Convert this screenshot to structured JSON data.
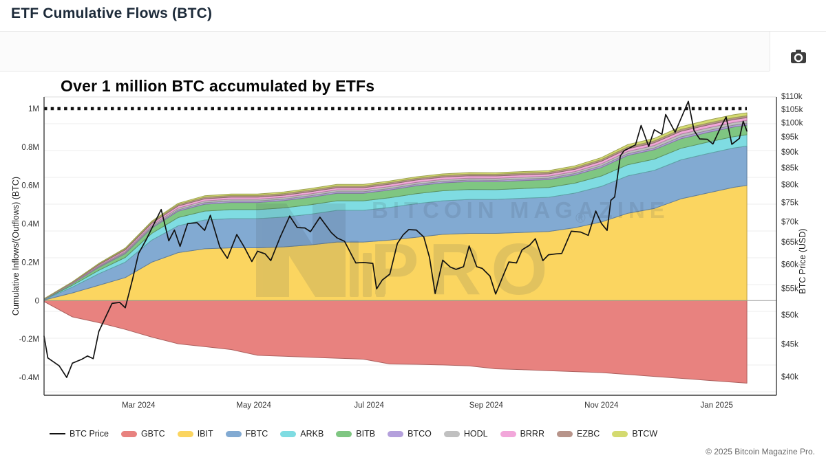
{
  "page": {
    "title": "ETF Cumulative Flows (BTC)",
    "copyright": "© 2025 Bitcoin Magazine Pro.",
    "watermark": {
      "line1": "BITCOIN MAGAZINE",
      "line2": "PRO",
      "reg": "®"
    },
    "toolbar": {
      "screenshot_icon": "camera-icon"
    }
  },
  "chart_data": {
    "type": "area",
    "subtype": "stacked-area-with-line",
    "title": "Over 1 million BTC accumulated by ETFs",
    "left_axis": {
      "label": "Cumulative Inflows/(Outflows) (BTC)",
      "scale": "linear",
      "range": [
        -0.49,
        1.06
      ]
    },
    "right_axis": {
      "label": "BTC Price (USD)",
      "scale": "log",
      "range_kusd": [
        37.5,
        110
      ]
    },
    "grid": true,
    "legend_position": "bottom",
    "annotation_line": {
      "type": "hline",
      "value": 1.0,
      "style": "dotted",
      "color": "#111111"
    },
    "y_ticks_left": [
      {
        "label": "1M",
        "value": 1.0
      },
      {
        "label": "0.8M",
        "value": 0.8
      },
      {
        "label": "0.6M",
        "value": 0.6
      },
      {
        "label": "0.4M",
        "value": 0.4
      },
      {
        "label": "0.2M",
        "value": 0.2
      },
      {
        "label": "0",
        "value": 0
      },
      {
        "label": "-0.2M",
        "value": -0.2
      },
      {
        "label": "-0.4M",
        "value": -0.4
      }
    ],
    "y_ticks_right": [
      {
        "label": "$110k",
        "value": 110
      },
      {
        "label": "$105k",
        "value": 105
      },
      {
        "label": "$100k",
        "value": 100
      },
      {
        "label": "$95k",
        "value": 95
      },
      {
        "label": "$90k",
        "value": 90
      },
      {
        "label": "$85k",
        "value": 85
      },
      {
        "label": "$80k",
        "value": 80
      },
      {
        "label": "$75k",
        "value": 75
      },
      {
        "label": "$70k",
        "value": 70
      },
      {
        "label": "$65k",
        "value": 65
      },
      {
        "label": "$60k",
        "value": 60
      },
      {
        "label": "$55k",
        "value": 55
      },
      {
        "label": "$50k",
        "value": 50
      },
      {
        "label": "$45k",
        "value": 45
      },
      {
        "label": "$40k",
        "value": 40
      }
    ],
    "x_ticks": [
      {
        "label": "Mar 2024",
        "date": "2024-03-01"
      },
      {
        "label": "May 2024",
        "date": "2024-05-01"
      },
      {
        "label": "Jul 2024",
        "date": "2024-07-01"
      },
      {
        "label": "Sep 2024",
        "date": "2024-09-01"
      },
      {
        "label": "Nov 2024",
        "date": "2024-11-01"
      },
      {
        "label": "Jan 2025",
        "date": "2025-01-01"
      }
    ],
    "flows": {
      "units": "million BTC (cumulative)",
      "x": [
        "2024-01-11",
        "2024-01-26",
        "2024-02-09",
        "2024-02-23",
        "2024-03-08",
        "2024-03-22",
        "2024-04-05",
        "2024-04-19",
        "2024-05-03",
        "2024-05-17",
        "2024-05-31",
        "2024-06-14",
        "2024-06-28",
        "2024-07-12",
        "2024-07-26",
        "2024-08-09",
        "2024-08-23",
        "2024-09-06",
        "2024-09-20",
        "2024-10-04",
        "2024-10-18",
        "2024-11-01",
        "2024-11-15",
        "2024-11-29",
        "2024-12-13",
        "2024-12-27",
        "2025-01-10",
        "2025-01-17"
      ],
      "series": [
        {
          "name": "GBTC",
          "color": "#e8827f",
          "values": [
            -0.005,
            -0.085,
            -0.115,
            -0.15,
            -0.19,
            -0.225,
            -0.24,
            -0.255,
            -0.285,
            -0.29,
            -0.295,
            -0.3,
            -0.305,
            -0.33,
            -0.332,
            -0.335,
            -0.34,
            -0.355,
            -0.36,
            -0.365,
            -0.37,
            -0.375,
            -0.385,
            -0.395,
            -0.405,
            -0.415,
            -0.425,
            -0.43
          ]
        },
        {
          "name": "IBIT",
          "color": "#fbd560",
          "values": [
            0.003,
            0.04,
            0.08,
            0.12,
            0.2,
            0.25,
            0.27,
            0.275,
            0.275,
            0.28,
            0.29,
            0.305,
            0.305,
            0.315,
            0.33,
            0.345,
            0.35,
            0.35,
            0.355,
            0.36,
            0.38,
            0.41,
            0.455,
            0.48,
            0.53,
            0.56,
            0.59,
            0.6
          ]
        },
        {
          "name": "FBTC",
          "color": "#82aad2",
          "values": [
            0.002,
            0.03,
            0.06,
            0.08,
            0.115,
            0.14,
            0.15,
            0.152,
            0.152,
            0.155,
            0.16,
            0.165,
            0.165,
            0.17,
            0.175,
            0.175,
            0.177,
            0.177,
            0.178,
            0.178,
            0.18,
            0.185,
            0.195,
            0.198,
            0.203,
            0.205,
            0.205,
            0.205
          ]
        },
        {
          "name": "ARKB",
          "color": "#7fdce2",
          "values": [
            0.001,
            0.01,
            0.018,
            0.025,
            0.035,
            0.043,
            0.046,
            0.047,
            0.047,
            0.048,
            0.049,
            0.05,
            0.05,
            0.051,
            0.052,
            0.052,
            0.052,
            0.051,
            0.051,
            0.051,
            0.052,
            0.054,
            0.058,
            0.059,
            0.06,
            0.06,
            0.059,
            0.059
          ]
        },
        {
          "name": "BITB",
          "color": "#7fc682",
          "values": [
            0.001,
            0.008,
            0.015,
            0.02,
            0.028,
            0.033,
            0.036,
            0.037,
            0.037,
            0.038,
            0.039,
            0.039,
            0.039,
            0.04,
            0.041,
            0.041,
            0.041,
            0.041,
            0.041,
            0.041,
            0.042,
            0.044,
            0.048,
            0.049,
            0.05,
            0.05,
            0.05,
            0.05
          ]
        },
        {
          "name": "BTCO",
          "color": "#b4a0dc",
          "values": [
            0.0005,
            0.002,
            0.004,
            0.005,
            0.006,
            0.007,
            0.008,
            0.008,
            0.008,
            0.008,
            0.008,
            0.008,
            0.008,
            0.008,
            0.008,
            0.008,
            0.008,
            0.008,
            0.008,
            0.008,
            0.008,
            0.009,
            0.009,
            0.009,
            0.01,
            0.01,
            0.01,
            0.01
          ]
        },
        {
          "name": "HODL",
          "color": "#c0c0c0",
          "values": [
            0.0005,
            0.002,
            0.004,
            0.006,
            0.008,
            0.009,
            0.009,
            0.009,
            0.009,
            0.009,
            0.01,
            0.01,
            0.01,
            0.01,
            0.01,
            0.01,
            0.01,
            0.01,
            0.01,
            0.01,
            0.01,
            0.011,
            0.012,
            0.013,
            0.014,
            0.014,
            0.014,
            0.014
          ]
        },
        {
          "name": "BRRR",
          "color": "#f2a7da",
          "values": [
            0.001,
            0.003,
            0.006,
            0.008,
            0.01,
            0.011,
            0.011,
            0.011,
            0.011,
            0.011,
            0.011,
            0.011,
            0.011,
            0.012,
            0.012,
            0.012,
            0.012,
            0.012,
            0.012,
            0.012,
            0.012,
            0.013,
            0.014,
            0.014,
            0.015,
            0.015,
            0.015,
            0.015
          ]
        },
        {
          "name": "EZBC",
          "color": "#b7948a",
          "values": [
            0.0005,
            0.002,
            0.004,
            0.006,
            0.007,
            0.008,
            0.009,
            0.009,
            0.009,
            0.009,
            0.009,
            0.009,
            0.009,
            0.009,
            0.009,
            0.009,
            0.009,
            0.009,
            0.009,
            0.009,
            0.009,
            0.009,
            0.01,
            0.01,
            0.01,
            0.01,
            0.01,
            0.01
          ]
        },
        {
          "name": "BTCW",
          "color": "#d4da70",
          "values": [
            0.0005,
            0.001,
            0.003,
            0.004,
            0.005,
            0.006,
            0.007,
            0.007,
            0.007,
            0.008,
            0.008,
            0.008,
            0.008,
            0.008,
            0.008,
            0.008,
            0.008,
            0.008,
            0.008,
            0.008,
            0.009,
            0.01,
            0.012,
            0.013,
            0.014,
            0.015,
            0.015,
            0.015
          ]
        }
      ]
    },
    "price": {
      "name": "BTC Price",
      "color": "#111111",
      "units": "thousand USD",
      "x": [
        "2024-01-11",
        "2024-01-13",
        "2024-01-19",
        "2024-01-23",
        "2024-01-26",
        "2024-01-31",
        "2024-02-03",
        "2024-02-06",
        "2024-02-09",
        "2024-02-13",
        "2024-02-16",
        "2024-02-20",
        "2024-02-23",
        "2024-02-27",
        "2024-03-01",
        "2024-03-05",
        "2024-03-08",
        "2024-03-13",
        "2024-03-17",
        "2024-03-20",
        "2024-03-23",
        "2024-03-27",
        "2024-04-01",
        "2024-04-05",
        "2024-04-08",
        "2024-04-13",
        "2024-04-17",
        "2024-04-22",
        "2024-04-26",
        "2024-04-30",
        "2024-05-03",
        "2024-05-07",
        "2024-05-10",
        "2024-05-15",
        "2024-05-20",
        "2024-05-24",
        "2024-05-28",
        "2024-05-31",
        "2024-06-05",
        "2024-06-11",
        "2024-06-14",
        "2024-06-18",
        "2024-06-24",
        "2024-06-28",
        "2024-07-03",
        "2024-07-05",
        "2024-07-08",
        "2024-07-12",
        "2024-07-16",
        "2024-07-19",
        "2024-07-22",
        "2024-07-26",
        "2024-07-30",
        "2024-08-02",
        "2024-08-05",
        "2024-08-09",
        "2024-08-13",
        "2024-08-16",
        "2024-08-20",
        "2024-08-23",
        "2024-08-27",
        "2024-08-30",
        "2024-09-03",
        "2024-09-06",
        "2024-09-10",
        "2024-09-13",
        "2024-09-17",
        "2024-09-20",
        "2024-09-24",
        "2024-09-27",
        "2024-10-01",
        "2024-10-04",
        "2024-10-08",
        "2024-10-11",
        "2024-10-16",
        "2024-10-21",
        "2024-10-25",
        "2024-10-29",
        "2024-11-01",
        "2024-11-04",
        "2024-11-06",
        "2024-11-08",
        "2024-11-11",
        "2024-11-13",
        "2024-11-15",
        "2024-11-19",
        "2024-11-22",
        "2024-11-26",
        "2024-11-29",
        "2024-12-03",
        "2024-12-05",
        "2024-12-10",
        "2024-12-13",
        "2024-12-17",
        "2024-12-20",
        "2024-12-23",
        "2024-12-27",
        "2024-12-30",
        "2025-01-03",
        "2025-01-06",
        "2025-01-09",
        "2025-01-13",
        "2025-01-15",
        "2025-01-17"
      ],
      "values_kusd": [
        46.3,
        42.8,
        41.6,
        39.9,
        42.0,
        42.6,
        43.1,
        42.7,
        47.1,
        49.9,
        52.1,
        52.3,
        51.3,
        57.1,
        62.4,
        65.5,
        68.3,
        73.1,
        65.3,
        67.9,
        64.0,
        69.5,
        69.7,
        67.8,
        71.6,
        63.9,
        61.3,
        66.8,
        63.8,
        60.6,
        62.9,
        62.3,
        60.8,
        66.2,
        71.4,
        68.5,
        68.4,
        67.5,
        71.1,
        67.3,
        66.0,
        65.2,
        60.3,
        60.4,
        60.2,
        54.9,
        56.7,
        57.9,
        64.7,
        66.7,
        68.0,
        67.9,
        66.2,
        61.5,
        54.0,
        60.9,
        59.4,
        58.9,
        59.5,
        64.1,
        59.5,
        59.1,
        57.5,
        53.9,
        57.6,
        60.5,
        60.3,
        63.2,
        64.3,
        65.8,
        60.8,
        62.1,
        62.3,
        62.4,
        67.6,
        67.4,
        66.6,
        72.7,
        69.5,
        67.8,
        75.6,
        76.5,
        88.7,
        90.4,
        91.0,
        92.3,
        99.0,
        91.8,
        97.5,
        95.9,
        103.0,
        96.6,
        101.4,
        108.0,
        97.2,
        94.3,
        94.2,
        92.6,
        98.2,
        102.1,
        92.5,
        94.5,
        100.5,
        97.0
      ]
    }
  }
}
